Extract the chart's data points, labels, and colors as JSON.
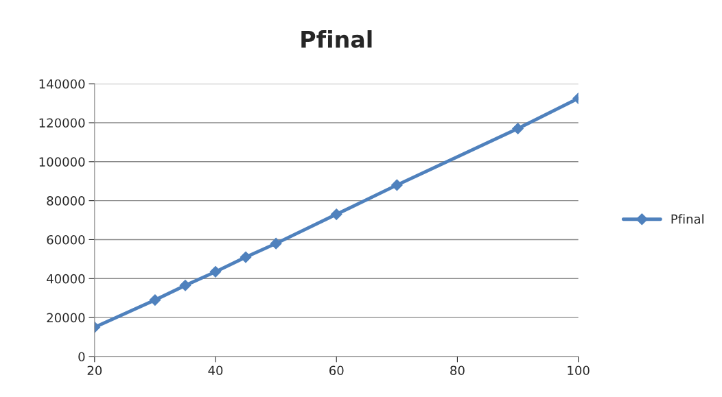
{
  "chart_data": {
    "type": "line",
    "title": "Pfinal",
    "x": [
      20,
      30,
      35,
      40,
      45,
      50,
      60,
      70,
      90,
      100
    ],
    "series": [
      {
        "name": "Pfinal",
        "color": "#4f81bd",
        "values": [
          15000,
          29000,
          36500,
          43500,
          51000,
          58000,
          73000,
          88000,
          117000,
          132500
        ]
      }
    ],
    "xlim": [
      20,
      100
    ],
    "xticks": [
      20,
      40,
      60,
      80,
      100
    ],
    "ylim": [
      0,
      140000
    ],
    "yticks": [
      0,
      20000,
      40000,
      60000,
      80000,
      100000,
      120000,
      140000
    ],
    "grid": "y",
    "legend": "right",
    "marker": "diamond",
    "line_style": "solid"
  }
}
